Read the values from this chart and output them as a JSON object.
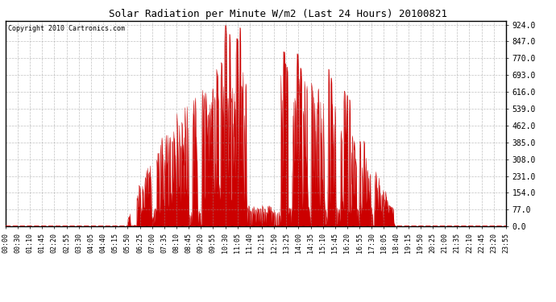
{
  "title": "Solar Radiation per Minute W/m2 (Last 24 Hours) 20100821",
  "copyright": "Copyright 2010 Cartronics.com",
  "background_color": "#ffffff",
  "plot_background": "#ffffff",
  "line_color": "#cc0000",
  "fill_color": "#cc0000",
  "grid_color": "#999999",
  "y_ticks": [
    0.0,
    77.0,
    154.0,
    231.0,
    308.0,
    385.0,
    462.0,
    539.0,
    616.0,
    693.0,
    770.0,
    847.0,
    924.0
  ],
  "y_max": 940,
  "x_tick_labels": [
    "00:00",
    "00:30",
    "01:10",
    "01:45",
    "02:20",
    "02:55",
    "03:30",
    "04:05",
    "04:40",
    "05:15",
    "05:50",
    "06:25",
    "07:00",
    "07:35",
    "08:10",
    "08:45",
    "09:20",
    "09:55",
    "10:30",
    "11:05",
    "11:40",
    "12:15",
    "12:50",
    "13:25",
    "14:00",
    "14:35",
    "15:10",
    "15:45",
    "16:20",
    "16:55",
    "17:30",
    "18:05",
    "18:40",
    "19:15",
    "19:50",
    "20:25",
    "21:00",
    "21:35",
    "22:10",
    "22:45",
    "23:20",
    "23:55"
  ],
  "num_points": 1440,
  "rise_hour": 5.83,
  "set_hour": 18.67
}
